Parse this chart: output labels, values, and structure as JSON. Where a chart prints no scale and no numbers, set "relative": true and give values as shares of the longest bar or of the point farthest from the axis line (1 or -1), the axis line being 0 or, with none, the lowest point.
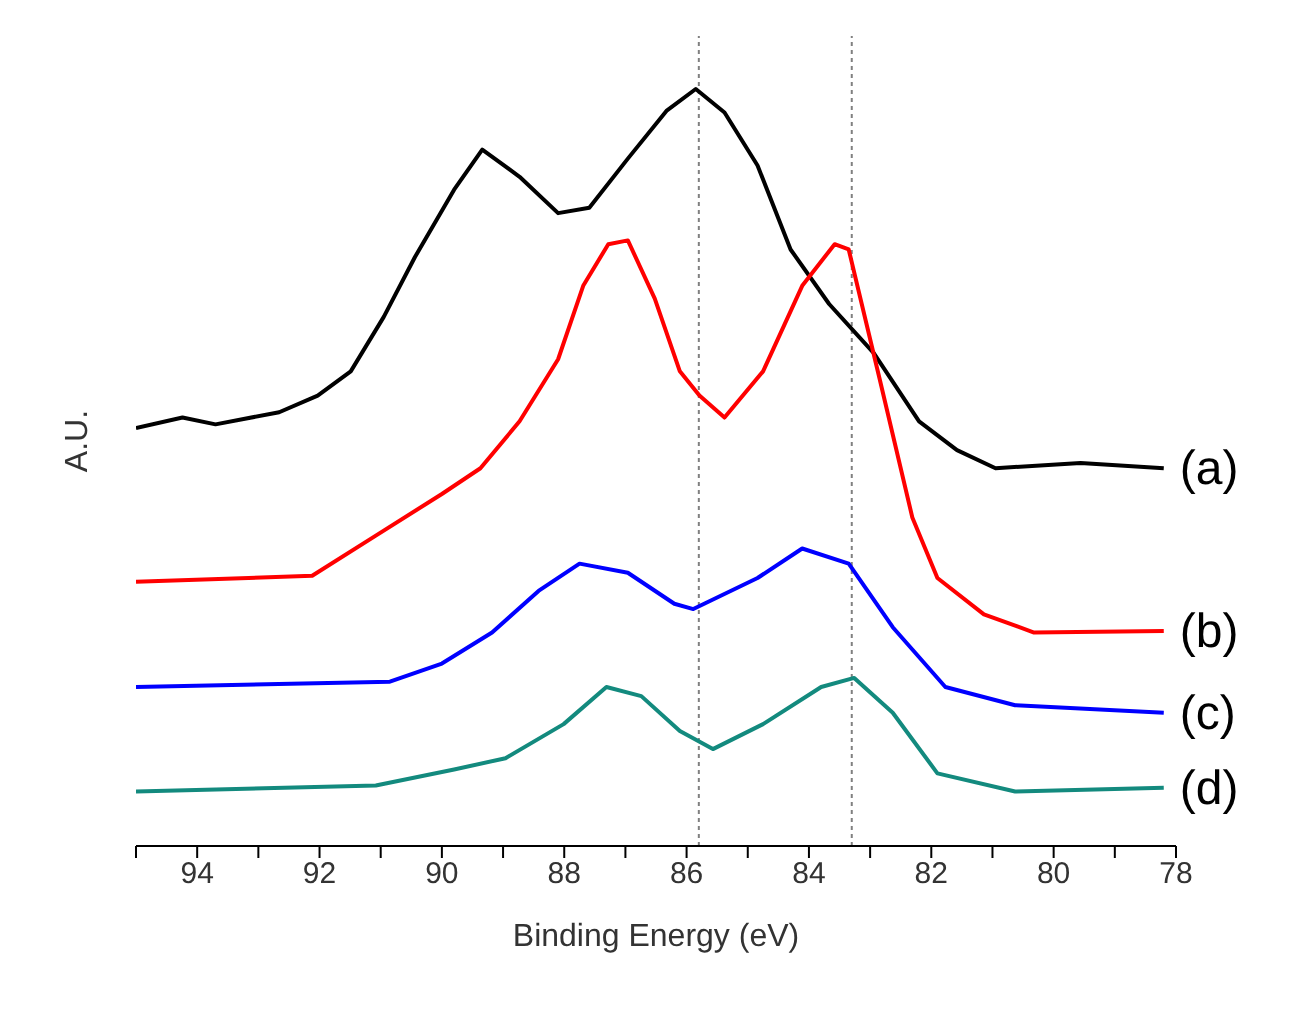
{
  "chart_data": {
    "type": "line",
    "relative": true,
    "xlabel": "Binding Energy (eV)",
    "ylabel": "A.U.",
    "xlim": [
      95,
      78
    ],
    "xticks": [
      {
        "value": 95,
        "label": null
      },
      94,
      {
        "value": 93,
        "label": null
      },
      92,
      {
        "value": 91,
        "label": null
      },
      90,
      {
        "value": 89,
        "label": null
      },
      88,
      {
        "value": 87,
        "label": null
      },
      86,
      {
        "value": 85,
        "label": null
      },
      84,
      {
        "value": 83,
        "label": null
      },
      82,
      {
        "value": 81,
        "label": null
      },
      80,
      {
        "value": 79,
        "label": null
      },
      78
    ],
    "grid": false,
    "legend": false,
    "marker": "none",
    "line_style": "solid",
    "ref_lines": [
      {
        "axis": "x",
        "value": 85.8,
        "color": "#808080",
        "line_style": "dotted"
      },
      {
        "axis": "x",
        "value": 83.3,
        "color": "#808080",
        "line_style": "dotted"
      }
    ],
    "series": [
      {
        "name": "(a)",
        "color": "#000000",
        "x": [
          95,
          94.24,
          93.7,
          92.66,
          92.03,
          91.49,
          90.95,
          90.44,
          89.8,
          89.34,
          88.73,
          88.1,
          87.59,
          86.96,
          86.33,
          85.85,
          85.38,
          84.84,
          84.3,
          83.67,
          82.94,
          82.2,
          81.58,
          80.95,
          79.56,
          78.2
        ],
        "values": [
          0.552,
          0.566,
          0.557,
          0.573,
          0.595,
          0.627,
          0.699,
          0.778,
          0.867,
          0.92,
          0.884,
          0.836,
          0.843,
          0.908,
          0.971,
          1.0,
          0.969,
          0.899,
          0.788,
          0.716,
          0.651,
          0.561,
          0.523,
          0.499,
          0.506,
          0.499
        ]
      },
      {
        "name": "(b)",
        "color": "#ff0000",
        "x": [
          95,
          92.12,
          91.08,
          90.0,
          89.37,
          88.73,
          88.1,
          87.69,
          87.28,
          86.96,
          86.52,
          86.11,
          85.79,
          85.38,
          84.75,
          84.11,
          83.58,
          83.35,
          82.85,
          82.31,
          81.9,
          81.14,
          80.32,
          78.2
        ],
        "values": [
          0.349,
          0.357,
          0.41,
          0.465,
          0.499,
          0.561,
          0.643,
          0.74,
          0.795,
          0.8,
          0.723,
          0.627,
          0.595,
          0.566,
          0.627,
          0.74,
          0.795,
          0.788,
          0.619,
          0.434,
          0.354,
          0.306,
          0.282,
          0.284
        ]
      },
      {
        "name": "(c)",
        "color": "#0000ff",
        "x": [
          95,
          90.85,
          90.0,
          89.18,
          88.42,
          87.75,
          86.96,
          86.2,
          85.89,
          84.84,
          84.11,
          83.35,
          82.63,
          81.77,
          80.63,
          78.2
        ],
        "values": [
          0.21,
          0.217,
          0.241,
          0.282,
          0.337,
          0.373,
          0.361,
          0.32,
          0.313,
          0.354,
          0.393,
          0.373,
          0.289,
          0.21,
          0.186,
          0.176
        ]
      },
      {
        "name": "(d)",
        "color": "#138a7e",
        "x": [
          95,
          91.08,
          89.8,
          88.96,
          88.01,
          87.31,
          86.74,
          86.11,
          85.57,
          84.75,
          83.8,
          83.26,
          82.63,
          81.9,
          80.63,
          78.2
        ],
        "values": [
          0.072,
          0.08,
          0.101,
          0.116,
          0.161,
          0.21,
          0.198,
          0.152,
          0.128,
          0.161,
          0.21,
          0.222,
          0.176,
          0.096,
          0.072,
          0.077
        ]
      }
    ]
  }
}
